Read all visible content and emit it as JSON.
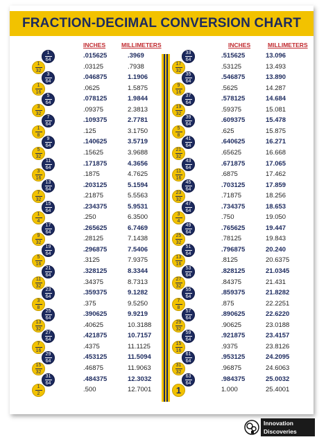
{
  "title": "FRACTION-DECIMAL CONVERSION CHART",
  "headers": {
    "inches": "INCHES",
    "millimeters": "MILLIMETERS"
  },
  "colors": {
    "navy": "#1c2a5e",
    "yellow": "#f2c200",
    "header_red": "#c0282d"
  },
  "left_rows": [
    {
      "num": "1",
      "den": "64",
      "in": ".015625",
      "mm": ".3969",
      "bold": true
    },
    {
      "num": "1",
      "den": "32",
      "in": ".03125",
      "mm": ".7938",
      "bold": false
    },
    {
      "num": "3",
      "den": "64",
      "in": ".046875",
      "mm": "1.1906",
      "bold": true
    },
    {
      "num": "1",
      "den": "16",
      "in": ".0625",
      "mm": "1.5875",
      "bold": false
    },
    {
      "num": "5",
      "den": "64",
      "in": ".078125",
      "mm": "1.9844",
      "bold": true
    },
    {
      "num": "3",
      "den": "32",
      "in": ".09375",
      "mm": "2.3813",
      "bold": false
    },
    {
      "num": "7",
      "den": "64",
      "in": ".109375",
      "mm": "2.7781",
      "bold": true
    },
    {
      "num": "1",
      "den": "8",
      "in": ".125",
      "mm": "3.1750",
      "bold": false
    },
    {
      "num": "9",
      "den": "64",
      "in": ".140625",
      "mm": "3.5719",
      "bold": true
    },
    {
      "num": "5",
      "den": "32",
      "in": ".15625",
      "mm": "3.9688",
      "bold": false
    },
    {
      "num": "11",
      "den": "64",
      "in": ".171875",
      "mm": "4.3656",
      "bold": true
    },
    {
      "num": "3",
      "den": "16",
      "in": ".1875",
      "mm": "4.7625",
      "bold": false
    },
    {
      "num": "13",
      "den": "64",
      "in": ".203125",
      "mm": "5.1594",
      "bold": true
    },
    {
      "num": "7",
      "den": "32",
      "in": ".21875",
      "mm": "5.5563",
      "bold": false
    },
    {
      "num": "15",
      "den": "64",
      "in": ".234375",
      "mm": "5.9531",
      "bold": true
    },
    {
      "num": "1",
      "den": "4",
      "in": ".250",
      "mm": "6.3500",
      "bold": false
    },
    {
      "num": "17",
      "den": "64",
      "in": ".265625",
      "mm": "6.7469",
      "bold": true
    },
    {
      "num": "9",
      "den": "32",
      "in": ".28125",
      "mm": "7.1438",
      "bold": false
    },
    {
      "num": "19",
      "den": "64",
      "in": ".296875",
      "mm": "7.5406",
      "bold": true
    },
    {
      "num": "5",
      "den": "16",
      "in": ".3125",
      "mm": "7.9375",
      "bold": false
    },
    {
      "num": "21",
      "den": "64",
      "in": ".328125",
      "mm": "8.3344",
      "bold": true
    },
    {
      "num": "11",
      "den": "32",
      "in": ".34375",
      "mm": "8.7313",
      "bold": false
    },
    {
      "num": "23",
      "den": "64",
      "in": ".359375",
      "mm": "9.1282",
      "bold": true
    },
    {
      "num": "3",
      "den": "8",
      "in": ".375",
      "mm": "9.5250",
      "bold": false
    },
    {
      "num": "25",
      "den": "64",
      "in": ".390625",
      "mm": "9.9219",
      "bold": true
    },
    {
      "num": "13",
      "den": "32",
      "in": ".40625",
      "mm": "10.3188",
      "bold": false
    },
    {
      "num": "27",
      "den": "64",
      "in": ".421875",
      "mm": "10.7157",
      "bold": true
    },
    {
      "num": "7",
      "den": "16",
      "in": ".4375",
      "mm": "11.1125",
      "bold": false
    },
    {
      "num": "29",
      "den": "64",
      "in": ".453125",
      "mm": "11.5094",
      "bold": true
    },
    {
      "num": "15",
      "den": "32",
      "in": ".46875",
      "mm": "11.9063",
      "bold": false
    },
    {
      "num": "31",
      "den": "64",
      "in": ".484375",
      "mm": "12.3032",
      "bold": true
    },
    {
      "num": "1",
      "den": "2",
      "in": ".500",
      "mm": "12.7001",
      "bold": false
    }
  ],
  "right_rows": [
    {
      "num": "33",
      "den": "64",
      "in": ".515625",
      "mm": "13.096",
      "bold": true
    },
    {
      "num": "17",
      "den": "32",
      "in": ".53125",
      "mm": "13.493",
      "bold": false
    },
    {
      "num": "35",
      "den": "64",
      "in": ".546875",
      "mm": "13.890",
      "bold": true
    },
    {
      "num": "9",
      "den": "16",
      "in": ".5625",
      "mm": "14.287",
      "bold": false
    },
    {
      "num": "37",
      "den": "64",
      "in": ".578125",
      "mm": "14.684",
      "bold": true
    },
    {
      "num": "19",
      "den": "32",
      "in": ".59375",
      "mm": "15.081",
      "bold": false
    },
    {
      "num": "39",
      "den": "64",
      "in": ".609375",
      "mm": "15.478",
      "bold": true
    },
    {
      "num": "5",
      "den": "8",
      "in": ".625",
      "mm": "15.875",
      "bold": false
    },
    {
      "num": "41",
      "den": "64",
      "in": ".640625",
      "mm": "16.271",
      "bold": true
    },
    {
      "num": "21",
      "den": "32",
      "in": ".65625",
      "mm": "16.668",
      "bold": false
    },
    {
      "num": "43",
      "den": "64",
      "in": ".671875",
      "mm": "17.065",
      "bold": true
    },
    {
      "num": "11",
      "den": "16",
      "in": ".6875",
      "mm": "17.462",
      "bold": false
    },
    {
      "num": "45",
      "den": "64",
      "in": ".703125",
      "mm": "17.859",
      "bold": true
    },
    {
      "num": "23",
      "den": "32",
      "in": ".71875",
      "mm": "18.256",
      "bold": false
    },
    {
      "num": "47",
      "den": "64",
      "in": ".734375",
      "mm": "18.653",
      "bold": true
    },
    {
      "num": "3",
      "den": "4",
      "in": ".750",
      "mm": "19.050",
      "bold": false
    },
    {
      "num": "49",
      "den": "64",
      "in": ".765625",
      "mm": "19.447",
      "bold": true
    },
    {
      "num": "25",
      "den": "32",
      "in": ".78125",
      "mm": "19.843",
      "bold": false
    },
    {
      "num": "51",
      "den": "64",
      "in": ".796875",
      "mm": "20.240",
      "bold": true
    },
    {
      "num": "13",
      "den": "16",
      "in": ".8125",
      "mm": "20.6375",
      "bold": false
    },
    {
      "num": "53",
      "den": "64",
      "in": ".828125",
      "mm": "21.0345",
      "bold": true
    },
    {
      "num": "27",
      "den": "32",
      "in": ".84375",
      "mm": "21.431",
      "bold": false
    },
    {
      "num": "55",
      "den": "64",
      "in": ".859375",
      "mm": "21.8282",
      "bold": true
    },
    {
      "num": "7",
      "den": "8",
      "in": ".875",
      "mm": "22.2251",
      "bold": false
    },
    {
      "num": "57",
      "den": "64",
      "in": ".890625",
      "mm": "22.6220",
      "bold": true
    },
    {
      "num": "29",
      "den": "32",
      "in": ".90625",
      "mm": "23.0188",
      "bold": false
    },
    {
      "num": "59",
      "den": "64",
      "in": ".921875",
      "mm": "23.4157",
      "bold": true
    },
    {
      "num": "15",
      "den": "16",
      "in": ".9375",
      "mm": "23.8126",
      "bold": false
    },
    {
      "num": "61",
      "den": "64",
      "in": ".953125",
      "mm": "24.2095",
      "bold": true
    },
    {
      "num": "31",
      "den": "32",
      "in": ".96875",
      "mm": "24.6063",
      "bold": false
    },
    {
      "num": "63",
      "den": "64",
      "in": ".984375",
      "mm": "25.0032",
      "bold": true
    },
    {
      "num": "1",
      "den": "",
      "in": "1.000",
      "mm": "25.4001",
      "bold": false
    }
  ],
  "brand": {
    "line1": "Innovation",
    "line2": "Discoveries",
    "icon": "brain-gear-icon"
  }
}
